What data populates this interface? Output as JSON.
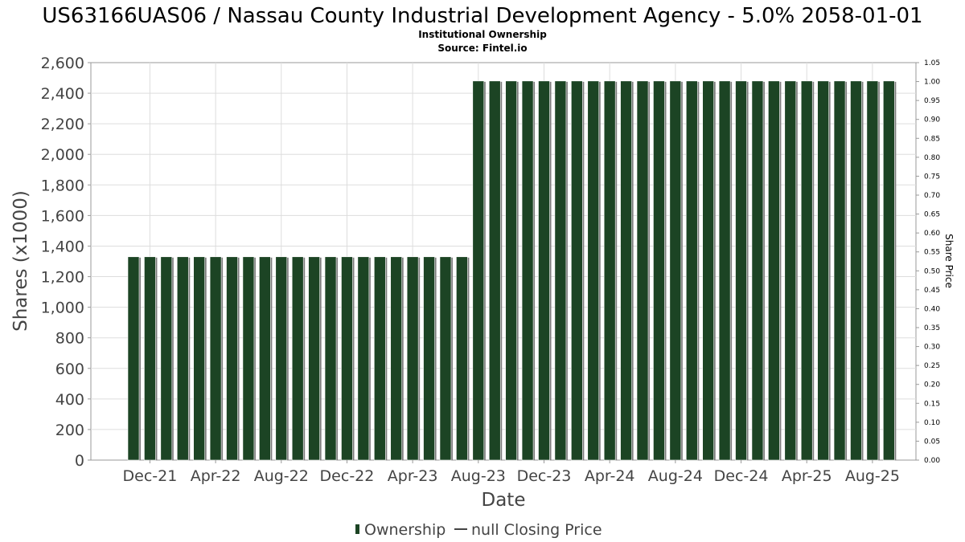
{
  "chart_data": {
    "type": "bar",
    "title": "US63166UAS06 / Nassau County Industrial Development Agency - 5.0% 2058-01-01",
    "subtitle_lines": [
      "Institutional Ownership",
      "Source: Fintel.io"
    ],
    "xlabel": "Date",
    "ylabel": "Shares (x1000)",
    "y2label": "Share Price",
    "ylim": [
      0,
      2600
    ],
    "y2lim": [
      0,
      1.05
    ],
    "y_ticks": [
      "0",
      "200",
      "400",
      "600",
      "800",
      "1,000",
      "1,200",
      "1,400",
      "1,600",
      "1,800",
      "2,000",
      "2,200",
      "2,400",
      "2,600"
    ],
    "y2_ticks": [
      "0.00",
      "0.05",
      "0.10",
      "0.15",
      "0.20",
      "0.25",
      "0.30",
      "0.35",
      "0.40",
      "0.45",
      "0.50",
      "0.55",
      "0.60",
      "0.65",
      "0.70",
      "0.75",
      "0.80",
      "0.85",
      "0.90",
      "0.95",
      "1.00",
      "1.05"
    ],
    "x_tick_labels": [
      "Dec-21",
      "Apr-22",
      "Aug-22",
      "Dec-22",
      "Apr-23",
      "Aug-23",
      "Dec-23",
      "Apr-24",
      "Aug-24",
      "Dec-24",
      "Apr-25",
      "Aug-25"
    ],
    "grid": true,
    "legend_position": "bottom",
    "series": [
      {
        "name": "Ownership",
        "color": "#1c4424",
        "values": [
          1330,
          1330,
          1330,
          1330,
          1330,
          1330,
          1330,
          1330,
          1330,
          1330,
          1330,
          1330,
          1330,
          1330,
          1330,
          1330,
          1330,
          1330,
          1330,
          1330,
          1330,
          2480,
          2480,
          2480,
          2480,
          2480,
          2480,
          2480,
          2480,
          2480,
          2480,
          2480,
          2480,
          2480,
          2480,
          2480,
          2480,
          2480,
          2480,
          2480,
          2480,
          2480,
          2480,
          2480,
          2480,
          2480,
          2480
        ]
      },
      {
        "name": "null Closing Price",
        "color": "#444444",
        "values": []
      }
    ]
  }
}
